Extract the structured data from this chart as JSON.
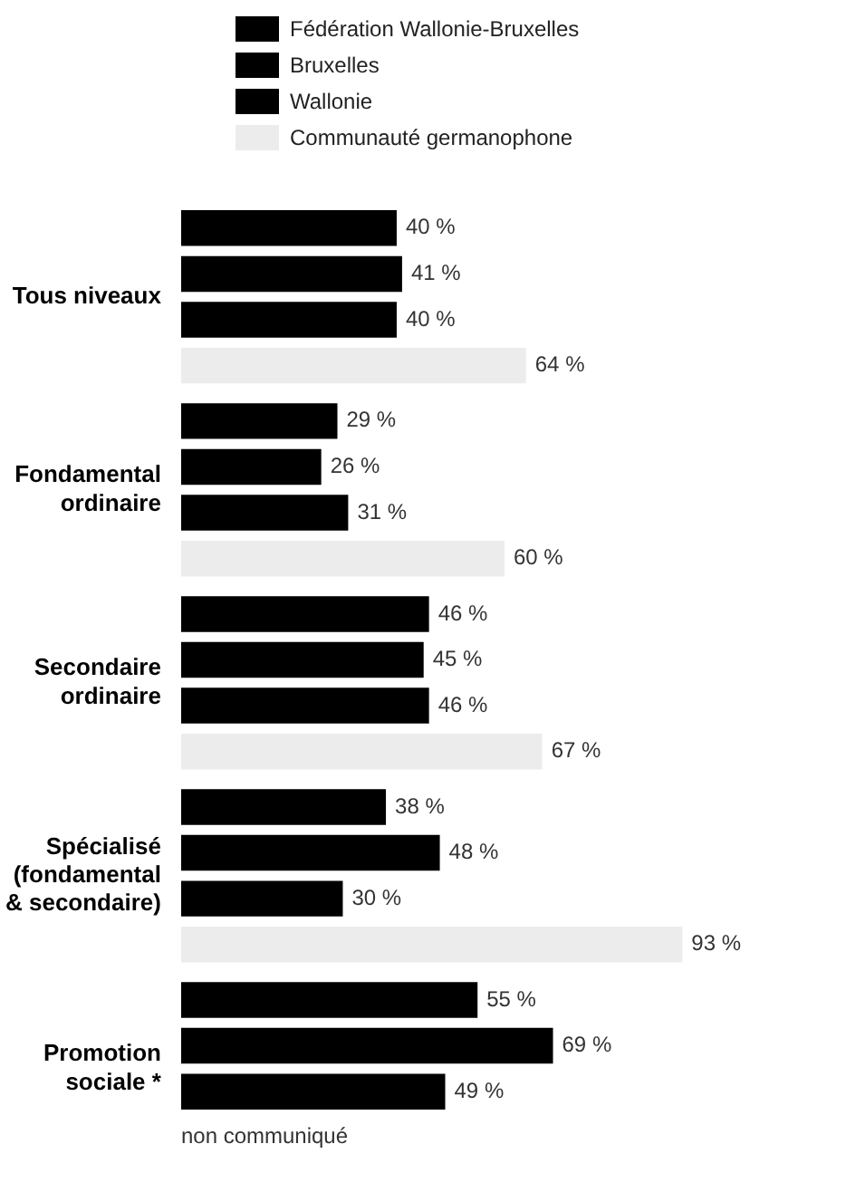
{
  "chart_data": {
    "type": "bar",
    "orientation": "horizontal",
    "legend": "top",
    "categories": [
      "Tous niveaux",
      "Fondamental\nordinaire",
      "Secondaire\nordinaire",
      "Spécialisé\n(fondamental\n& secondaire)",
      "Promotion\nsociale *"
    ],
    "series": [
      {
        "name": "Fédération Wallonie-Bruxelles",
        "color": "#000000",
        "values": [
          40,
          29,
          46,
          38,
          55
        ],
        "value_labels": [
          "40 %",
          "29 %",
          "46 %",
          "38 %",
          "55 %"
        ]
      },
      {
        "name": "Bruxelles",
        "color": "#000000",
        "values": [
          41,
          26,
          45,
          48,
          69
        ],
        "value_labels": [
          "41 %",
          "26 %",
          "45 %",
          "48 %",
          "69 %"
        ]
      },
      {
        "name": "Wallonie",
        "color": "#000000",
        "values": [
          40,
          31,
          46,
          30,
          49
        ],
        "value_labels": [
          "40 %",
          "31 %",
          "46 %",
          "30 %",
          "49 %"
        ]
      },
      {
        "name": "Communauté germanophone",
        "color": "#ececec",
        "values": [
          64,
          60,
          67,
          93,
          null
        ],
        "value_labels": [
          "64 %",
          "60 %",
          "67 %",
          "93 %",
          "non communiqué"
        ]
      }
    ]
  }
}
